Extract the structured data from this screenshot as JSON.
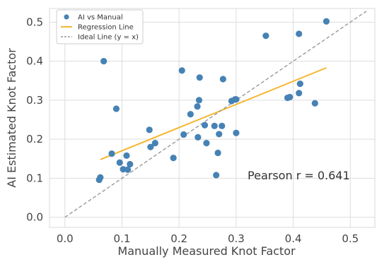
{
  "chart_data": {
    "type": "scatter",
    "xlabel": "Manually Measured Knot Factor",
    "ylabel": "AI Estimated Knot Factor",
    "xlim": [
      -0.027,
      0.543
    ],
    "ylim": [
      -0.026,
      0.535
    ],
    "xticks": [
      "0.0",
      "0.1",
      "0.2",
      "0.3",
      "0.4",
      "0.5"
    ],
    "xtick_values": [
      0.0,
      0.1,
      0.2,
      0.3,
      0.4,
      0.5
    ],
    "yticks": [
      "0.0",
      "0.1",
      "0.2",
      "0.3",
      "0.4",
      "0.5"
    ],
    "ytick_values": [
      0.0,
      0.1,
      0.2,
      0.3,
      0.4,
      0.5
    ],
    "grid": true,
    "legend_position": "top-left",
    "series": [
      {
        "name": "AI vs Manual",
        "kind": "scatter",
        "color": "#4682b4",
        "x": [
          0.06,
          0.062,
          0.068,
          0.082,
          0.09,
          0.096,
          0.102,
          0.108,
          0.11,
          0.114,
          0.148,
          0.15,
          0.158,
          0.19,
          0.205,
          0.208,
          0.22,
          0.232,
          0.233,
          0.235,
          0.236,
          0.245,
          0.248,
          0.262,
          0.265,
          0.268,
          0.27,
          0.275,
          0.277,
          0.292,
          0.298,
          0.3,
          0.3,
          0.352,
          0.39,
          0.394,
          0.41,
          0.41,
          0.412,
          0.438,
          0.458
        ],
        "y": [
          0.096,
          0.102,
          0.4,
          0.163,
          0.278,
          0.14,
          0.123,
          0.158,
          0.122,
          0.136,
          0.224,
          0.18,
          0.19,
          0.152,
          0.376,
          0.212,
          0.264,
          0.284,
          0.205,
          0.3,
          0.358,
          0.236,
          0.19,
          0.234,
          0.108,
          0.165,
          0.213,
          0.234,
          0.354,
          0.298,
          0.302,
          0.302,
          0.216,
          0.465,
          0.306,
          0.308,
          0.47,
          0.318,
          0.342,
          0.292,
          0.502
        ]
      },
      {
        "name": "Regression Line",
        "kind": "line",
        "color": "#f5b731",
        "x": [
          0.062,
          0.458
        ],
        "y": [
          0.148,
          0.383
        ]
      },
      {
        "name": "Ideal Line (y = x)",
        "kind": "line",
        "style": "dashed",
        "color": "#999999",
        "x": [
          0.0,
          0.528
        ],
        "y": [
          0.0,
          0.528
        ]
      }
    ],
    "annotations": [
      {
        "text": "Pearson r = 0.641",
        "x": 0.32,
        "y": 0.108
      }
    ]
  }
}
